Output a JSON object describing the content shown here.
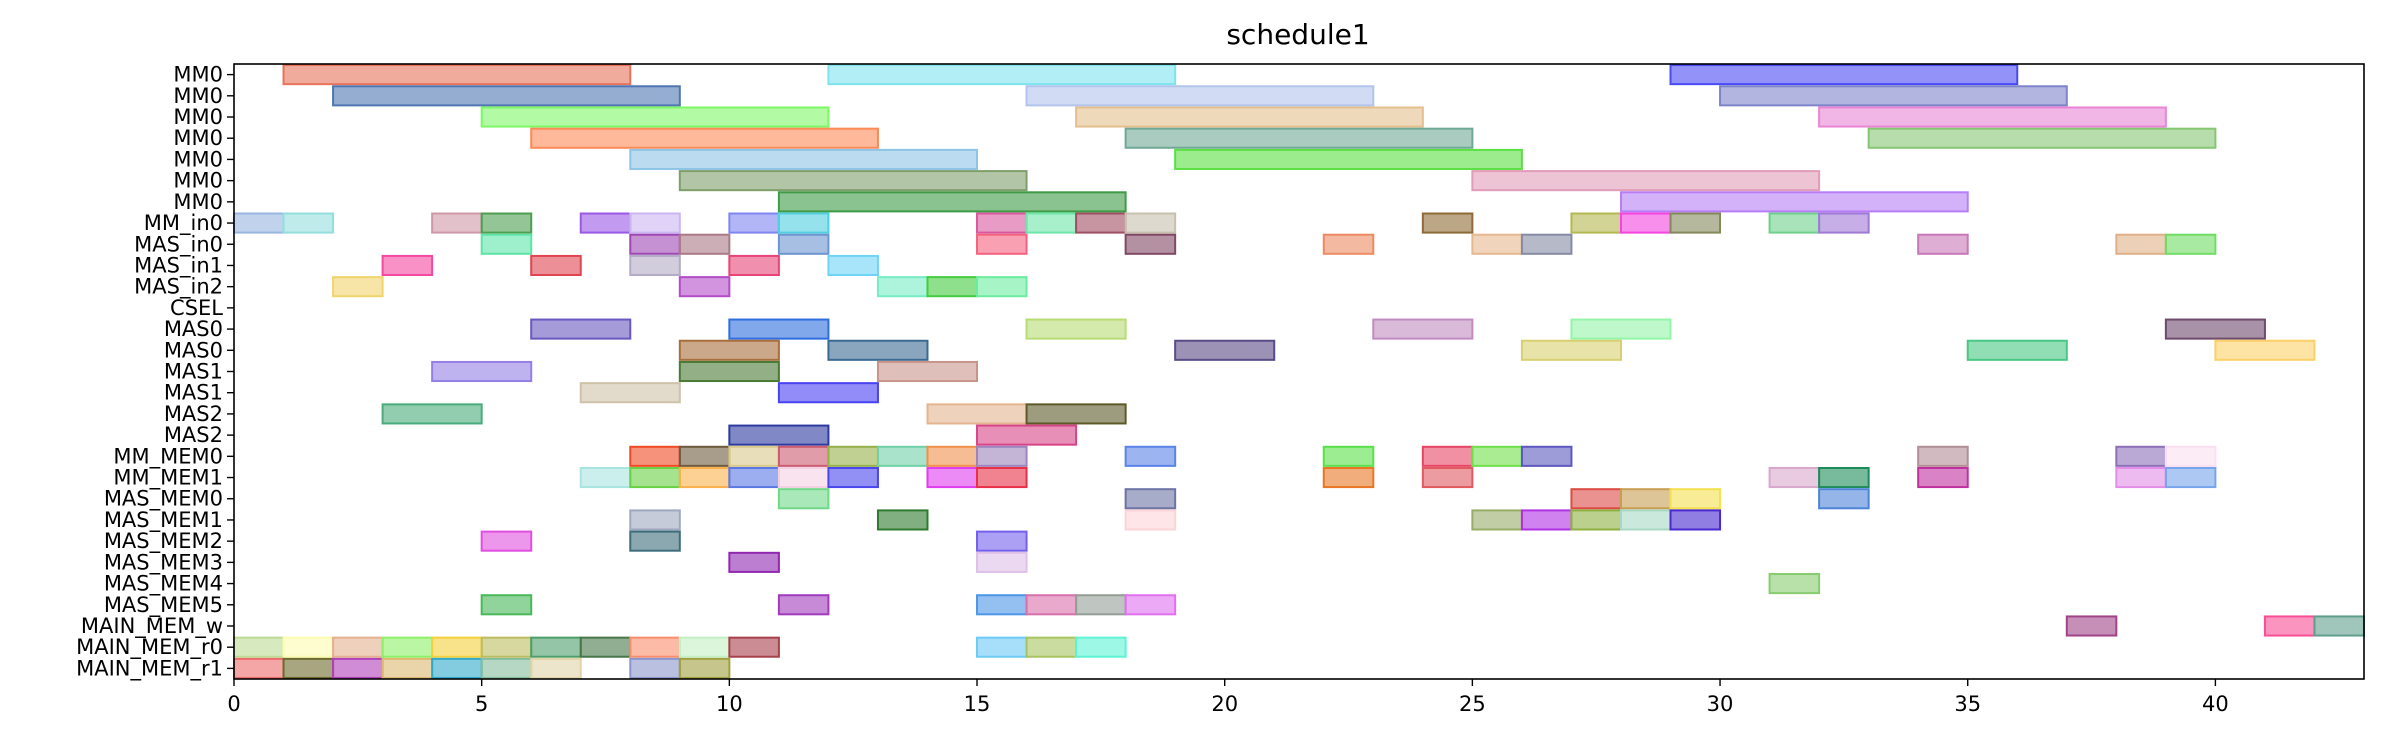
{
  "chart_data": {
    "type": "gantt",
    "title": "schedule1",
    "xlabel": "",
    "ylabel": "",
    "xlim": [
      0,
      43
    ],
    "xticks": [
      0,
      5,
      10,
      15,
      20,
      25,
      30,
      35,
      40
    ],
    "grid": false,
    "rows": [
      "MM0",
      "MM0",
      "MM0",
      "MM0",
      "MM0",
      "MM0",
      "MM0",
      "MM_in0",
      "MAS_in0",
      "MAS_in1",
      "MAS_in2",
      "CSEL",
      "MAS0",
      "MAS0",
      "MAS1",
      "MAS1",
      "MAS2",
      "MAS2",
      "MM_MEM0",
      "MM_MEM1",
      "MAS_MEM0",
      "MAS_MEM1",
      "MAS_MEM2",
      "MAS_MEM3",
      "MAS_MEM4",
      "MAS_MEM5",
      "MAIN_MEM_w",
      "MAIN_MEM_r0",
      "MAIN_MEM_r1"
    ],
    "tasks": [
      {
        "row": 0,
        "start": 1,
        "end": 8,
        "color": "#e8735a"
      },
      {
        "row": 0,
        "start": 12,
        "end": 19,
        "color": "#7fe3ee"
      },
      {
        "row": 0,
        "start": 29,
        "end": 36,
        "color": "#4a4af5"
      },
      {
        "row": 1,
        "start": 2,
        "end": 9,
        "color": "#4f76b0"
      },
      {
        "row": 1,
        "start": 16,
        "end": 23,
        "color": "#b3c4ec"
      },
      {
        "row": 1,
        "start": 30,
        "end": 37,
        "color": "#7e84c9"
      },
      {
        "row": 2,
        "start": 5,
        "end": 12,
        "color": "#7ef766"
      },
      {
        "row": 2,
        "start": 17,
        "end": 24,
        "color": "#e4c08e"
      },
      {
        "row": 2,
        "start": 32,
        "end": 39,
        "color": "#ea85d6"
      },
      {
        "row": 3,
        "start": 6,
        "end": 13,
        "color": "#fb8a57"
      },
      {
        "row": 3,
        "start": 18,
        "end": 25,
        "color": "#6fa896"
      },
      {
        "row": 3,
        "start": 33,
        "end": 40,
        "color": "#86c673"
      },
      {
        "row": 4,
        "start": 8,
        "end": 15,
        "color": "#8ec4e6"
      },
      {
        "row": 4,
        "start": 19,
        "end": 26,
        "color": "#5ae042"
      },
      {
        "row": 5,
        "start": 9,
        "end": 16,
        "color": "#7f9e6a"
      },
      {
        "row": 5,
        "start": 25,
        "end": 32,
        "color": "#e19cb8"
      },
      {
        "row": 6,
        "start": 11,
        "end": 18,
        "color": "#3e9b46"
      },
      {
        "row": 6,
        "start": 28,
        "end": 35,
        "color": "#b77ef5"
      },
      {
        "row": 7,
        "start": 0,
        "end": 1,
        "color": "#98b6e0"
      },
      {
        "row": 7,
        "start": 1,
        "end": 2,
        "color": "#94dede"
      },
      {
        "row": 7,
        "start": 4,
        "end": 5,
        "color": "#cf98a8"
      },
      {
        "row": 7,
        "start": 5,
        "end": 6,
        "color": "#4d9e50"
      },
      {
        "row": 7,
        "start": 7,
        "end": 8,
        "color": "#9a58e6"
      },
      {
        "row": 7,
        "start": 8,
        "end": 9,
        "color": "#cbb6f2"
      },
      {
        "row": 7,
        "start": 10,
        "end": 11,
        "color": "#7f86f2"
      },
      {
        "row": 7,
        "start": 11,
        "end": 12,
        "color": "#50cfe0"
      },
      {
        "row": 7,
        "start": 15,
        "end": 16,
        "color": "#d8589e"
      },
      {
        "row": 7,
        "start": 16,
        "end": 17,
        "color": "#6ee6aa"
      },
      {
        "row": 7,
        "start": 17,
        "end": 18,
        "color": "#a04f62"
      },
      {
        "row": 7,
        "start": 18,
        "end": 19,
        "color": "#c8c0ae"
      },
      {
        "row": 7,
        "start": 24,
        "end": 25,
        "color": "#8e6a36"
      },
      {
        "row": 7,
        "start": 27,
        "end": 28,
        "color": "#b4b850"
      },
      {
        "row": 7,
        "start": 28,
        "end": 29,
        "color": "#f544e0"
      },
      {
        "row": 7,
        "start": 29,
        "end": 30,
        "color": "#84885a"
      },
      {
        "row": 7,
        "start": 31,
        "end": 32,
        "color": "#6ed08c"
      },
      {
        "row": 7,
        "start": 32,
        "end": 33,
        "color": "#9e7ad6"
      },
      {
        "row": 8,
        "start": 5,
        "end": 6,
        "color": "#5ee4a8"
      },
      {
        "row": 8,
        "start": 8,
        "end": 9,
        "color": "#9e48b4"
      },
      {
        "row": 8,
        "start": 9,
        "end": 10,
        "color": "#aa7a86"
      },
      {
        "row": 8,
        "start": 11,
        "end": 12,
        "color": "#6c94d0"
      },
      {
        "row": 8,
        "start": 15,
        "end": 16,
        "color": "#f56280"
      },
      {
        "row": 8,
        "start": 18,
        "end": 19,
        "color": "#804864"
      },
      {
        "row": 8,
        "start": 22,
        "end": 23,
        "color": "#ec8a62"
      },
      {
        "row": 8,
        "start": 25,
        "end": 26,
        "color": "#e6b890"
      },
      {
        "row": 8,
        "start": 26,
        "end": 27,
        "color": "#868aa4"
      },
      {
        "row": 8,
        "start": 34,
        "end": 35,
        "color": "#c878b8"
      },
      {
        "row": 8,
        "start": 38,
        "end": 39,
        "color": "#e0b088"
      },
      {
        "row": 8,
        "start": 39,
        "end": 40,
        "color": "#70dc64"
      },
      {
        "row": 9,
        "start": 3,
        "end": 4,
        "color": "#f548a0"
      },
      {
        "row": 9,
        "start": 6,
        "end": 7,
        "color": "#e04450"
      },
      {
        "row": 9,
        "start": 8,
        "end": 9,
        "color": "#b4acc6"
      },
      {
        "row": 9,
        "start": 10,
        "end": 11,
        "color": "#e84478"
      },
      {
        "row": 9,
        "start": 12,
        "end": 13,
        "color": "#70d4f6"
      },
      {
        "row": 10,
        "start": 2,
        "end": 3,
        "color": "#f0d46c"
      },
      {
        "row": 10,
        "start": 9,
        "end": 10,
        "color": "#b44cc8"
      },
      {
        "row": 10,
        "start": 13,
        "end": 14,
        "color": "#78ecc4"
      },
      {
        "row": 10,
        "start": 14,
        "end": 15,
        "color": "#44cc40"
      },
      {
        "row": 10,
        "start": 15,
        "end": 16,
        "color": "#6ceca0"
      },
      {
        "row": 12,
        "start": 6,
        "end": 8,
        "color": "#6a58c0"
      },
      {
        "row": 12,
        "start": 10,
        "end": 12,
        "color": "#2e6ee0"
      },
      {
        "row": 12,
        "start": 16,
        "end": 18,
        "color": "#b8dc74"
      },
      {
        "row": 12,
        "start": 23,
        "end": 25,
        "color": "#c08cc0"
      },
      {
        "row": 12,
        "start": 27,
        "end": 29,
        "color": "#94f4a8"
      },
      {
        "row": 12,
        "start": 39,
        "end": 41,
        "color": "#6e4a6c"
      },
      {
        "row": 13,
        "start": 9,
        "end": 11,
        "color": "#a86e3c"
      },
      {
        "row": 13,
        "start": 12,
        "end": 14,
        "color": "#3a6a92"
      },
      {
        "row": 13,
        "start": 19,
        "end": 21,
        "color": "#5a4a86"
      },
      {
        "row": 13,
        "start": 26,
        "end": 28,
        "color": "#d8d070"
      },
      {
        "row": 13,
        "start": 35,
        "end": 37,
        "color": "#48c884"
      },
      {
        "row": 13,
        "start": 40,
        "end": 42,
        "color": "#fcd068"
      },
      {
        "row": 14,
        "start": 4,
        "end": 6,
        "color": "#9480e4"
      },
      {
        "row": 14,
        "start": 9,
        "end": 11,
        "color": "#4a7a34"
      },
      {
        "row": 14,
        "start": 13,
        "end": 15,
        "color": "#c8948a"
      },
      {
        "row": 15,
        "start": 7,
        "end": 9,
        "color": "#cec2a8"
      },
      {
        "row": 15,
        "start": 11,
        "end": 13,
        "color": "#4a40f4"
      },
      {
        "row": 16,
        "start": 3,
        "end": 5,
        "color": "#4aac7c"
      },
      {
        "row": 16,
        "start": 14,
        "end": 16,
        "color": "#e4b490"
      },
      {
        "row": 16,
        "start": 16,
        "end": 18,
        "color": "#5e5a28"
      },
      {
        "row": 17,
        "start": 10,
        "end": 12,
        "color": "#2c3aa0"
      },
      {
        "row": 17,
        "start": 15,
        "end": 17,
        "color": "#d84488"
      },
      {
        "row": 18,
        "start": 8,
        "end": 9,
        "color": "#f04a24"
      },
      {
        "row": 18,
        "start": 9,
        "end": 10,
        "color": "#6e5a3c"
      },
      {
        "row": 18,
        "start": 10,
        "end": 11,
        "color": "#d8c88a"
      },
      {
        "row": 18,
        "start": 11,
        "end": 12,
        "color": "#cc5a70"
      },
      {
        "row": 18,
        "start": 12,
        "end": 13,
        "color": "#96b04a"
      },
      {
        "row": 18,
        "start": 13,
        "end": 14,
        "color": "#70d0a8"
      },
      {
        "row": 18,
        "start": 14,
        "end": 15,
        "color": "#f0904c"
      },
      {
        "row": 18,
        "start": 15,
        "end": 16,
        "color": "#9c84bc"
      },
      {
        "row": 18,
        "start": 18,
        "end": 19,
        "color": "#5a84e8"
      },
      {
        "row": 18,
        "start": 22,
        "end": 23,
        "color": "#5ae04a"
      },
      {
        "row": 18,
        "start": 24,
        "end": 25,
        "color": "#e84466"
      },
      {
        "row": 18,
        "start": 25,
        "end": 26,
        "color": "#70e04a"
      },
      {
        "row": 18,
        "start": 26,
        "end": 27,
        "color": "#5e58c0"
      },
      {
        "row": 18,
        "start": 34,
        "end": 35,
        "color": "#b28e96"
      },
      {
        "row": 18,
        "start": 38,
        "end": 39,
        "color": "#8c70b8"
      },
      {
        "row": 18,
        "start": 39,
        "end": 40,
        "color": "#fae0f0"
      },
      {
        "row": 19,
        "start": 7,
        "end": 8,
        "color": "#a8e4e0"
      },
      {
        "row": 19,
        "start": 8,
        "end": 9,
        "color": "#6ad044"
      },
      {
        "row": 19,
        "start": 9,
        "end": 10,
        "color": "#fcb04c"
      },
      {
        "row": 19,
        "start": 10,
        "end": 11,
        "color": "#5a78e4"
      },
      {
        "row": 19,
        "start": 11,
        "end": 12,
        "color": "#f4d0e4"
      },
      {
        "row": 19,
        "start": 12,
        "end": 13,
        "color": "#4a46ee"
      },
      {
        "row": 19,
        "start": 14,
        "end": 15,
        "color": "#e03cf0"
      },
      {
        "row": 19,
        "start": 15,
        "end": 16,
        "color": "#e83048"
      },
      {
        "row": 19,
        "start": 22,
        "end": 23,
        "color": "#e87624"
      },
      {
        "row": 19,
        "start": 24,
        "end": 25,
        "color": "#e05a60"
      },
      {
        "row": 19,
        "start": 31,
        "end": 32,
        "color": "#d8a8cc"
      },
      {
        "row": 19,
        "start": 32,
        "end": 33,
        "color": "#1e8c5a"
      },
      {
        "row": 19,
        "start": 34,
        "end": 35,
        "color": "#c030a0"
      },
      {
        "row": 19,
        "start": 38,
        "end": 39,
        "color": "#e28ee8"
      },
      {
        "row": 19,
        "start": 39,
        "end": 40,
        "color": "#78a4ec"
      },
      {
        "row": 20,
        "start": 11,
        "end": 12,
        "color": "#70d888"
      },
      {
        "row": 20,
        "start": 18,
        "end": 19,
        "color": "#6c74a4"
      },
      {
        "row": 20,
        "start": 27,
        "end": 28,
        "color": "#dc4a44"
      },
      {
        "row": 20,
        "start": 28,
        "end": 29,
        "color": "#c89e52"
      },
      {
        "row": 20,
        "start": 29,
        "end": 30,
        "color": "#f4e050"
      },
      {
        "row": 20,
        "start": 32,
        "end": 33,
        "color": "#4e84d8"
      },
      {
        "row": 21,
        "start": 8,
        "end": 9,
        "color": "#a0a8c0"
      },
      {
        "row": 21,
        "start": 13,
        "end": 14,
        "color": "#2e7a2e"
      },
      {
        "row": 21,
        "start": 18,
        "end": 19,
        "color": "#fcd4d8"
      },
      {
        "row": 21,
        "start": 25,
        "end": 26,
        "color": "#98ac68"
      },
      {
        "row": 21,
        "start": 26,
        "end": 27,
        "color": "#b030e4"
      },
      {
        "row": 21,
        "start": 27,
        "end": 28,
        "color": "#8eb040"
      },
      {
        "row": 21,
        "start": 28,
        "end": 29,
        "color": "#a8d8c4"
      },
      {
        "row": 21,
        "start": 29,
        "end": 30,
        "color": "#4828d0"
      },
      {
        "row": 22,
        "start": 5,
        "end": 6,
        "color": "#e050e0"
      },
      {
        "row": 22,
        "start": 8,
        "end": 9,
        "color": "#3e6e7c"
      },
      {
        "row": 22,
        "start": 15,
        "end": 16,
        "color": "#7460ec"
      },
      {
        "row": 23,
        "start": 10,
        "end": 11,
        "color": "#9028b0"
      },
      {
        "row": 23,
        "start": 15,
        "end": 16,
        "color": "#dec0e8"
      },
      {
        "row": 24,
        "start": 31,
        "end": 32,
        "color": "#88cc70"
      },
      {
        "row": 25,
        "start": 5,
        "end": 6,
        "color": "#48b858"
      },
      {
        "row": 25,
        "start": 11,
        "end": 12,
        "color": "#a03cbc"
      },
      {
        "row": 25,
        "start": 15,
        "end": 16,
        "color": "#4c96e8"
      },
      {
        "row": 25,
        "start": 16,
        "end": 17,
        "color": "#d870ac"
      },
      {
        "row": 25,
        "start": 17,
        "end": 18,
        "color": "#949e96"
      },
      {
        "row": 25,
        "start": 18,
        "end": 19,
        "color": "#e070f0"
      },
      {
        "row": 26,
        "start": 37,
        "end": 38,
        "color": "#a04488"
      },
      {
        "row": 26,
        "start": 41,
        "end": 42,
        "color": "#f84e96"
      },
      {
        "row": 26,
        "start": 42,
        "end": 43,
        "color": "#609e8c"
      },
      {
        "row": 27,
        "start": 0,
        "end": 1,
        "color": "#bcdc94"
      },
      {
        "row": 27,
        "start": 1,
        "end": 2,
        "color": "#fcfcb0"
      },
      {
        "row": 27,
        "start": 2,
        "end": 3,
        "color": "#e4b090"
      },
      {
        "row": 27,
        "start": 3,
        "end": 4,
        "color": "#8cf068"
      },
      {
        "row": 27,
        "start": 4,
        "end": 5,
        "color": "#f4d03c"
      },
      {
        "row": 27,
        "start": 5,
        "end": 6,
        "color": "#bcbc60"
      },
      {
        "row": 27,
        "start": 6,
        "end": 7,
        "color": "#4c9e6a"
      },
      {
        "row": 27,
        "start": 7,
        "end": 8,
        "color": "#48784a"
      },
      {
        "row": 27,
        "start": 8,
        "end": 9,
        "color": "#f88e6c"
      },
      {
        "row": 27,
        "start": 9,
        "end": 10,
        "color": "#c4f0c4"
      },
      {
        "row": 27,
        "start": 10,
        "end": 11,
        "color": "#a8404c"
      },
      {
        "row": 27,
        "start": 15,
        "end": 16,
        "color": "#6ccaf6"
      },
      {
        "row": 27,
        "start": 16,
        "end": 17,
        "color": "#a8c460"
      },
      {
        "row": 27,
        "start": 17,
        "end": 18,
        "color": "#5cf4d4"
      },
      {
        "row": 28,
        "start": 0,
        "end": 1,
        "color": "#ec6a6a"
      },
      {
        "row": 28,
        "start": 1,
        "end": 2,
        "color": "#6e6a2c"
      },
      {
        "row": 28,
        "start": 2,
        "end": 3,
        "color": "#b040b8"
      },
      {
        "row": 28,
        "start": 3,
        "end": 4,
        "color": "#dcb870"
      },
      {
        "row": 28,
        "start": 4,
        "end": 5,
        "color": "#30a8c8"
      },
      {
        "row": 28,
        "start": 5,
        "end": 6,
        "color": "#84bc9c"
      },
      {
        "row": 28,
        "start": 6,
        "end": 7,
        "color": "#e0d4a8"
      },
      {
        "row": 28,
        "start": 8,
        "end": 9,
        "color": "#8c96cc"
      },
      {
        "row": 28,
        "start": 9,
        "end": 10,
        "color": "#a0a040"
      }
    ]
  }
}
